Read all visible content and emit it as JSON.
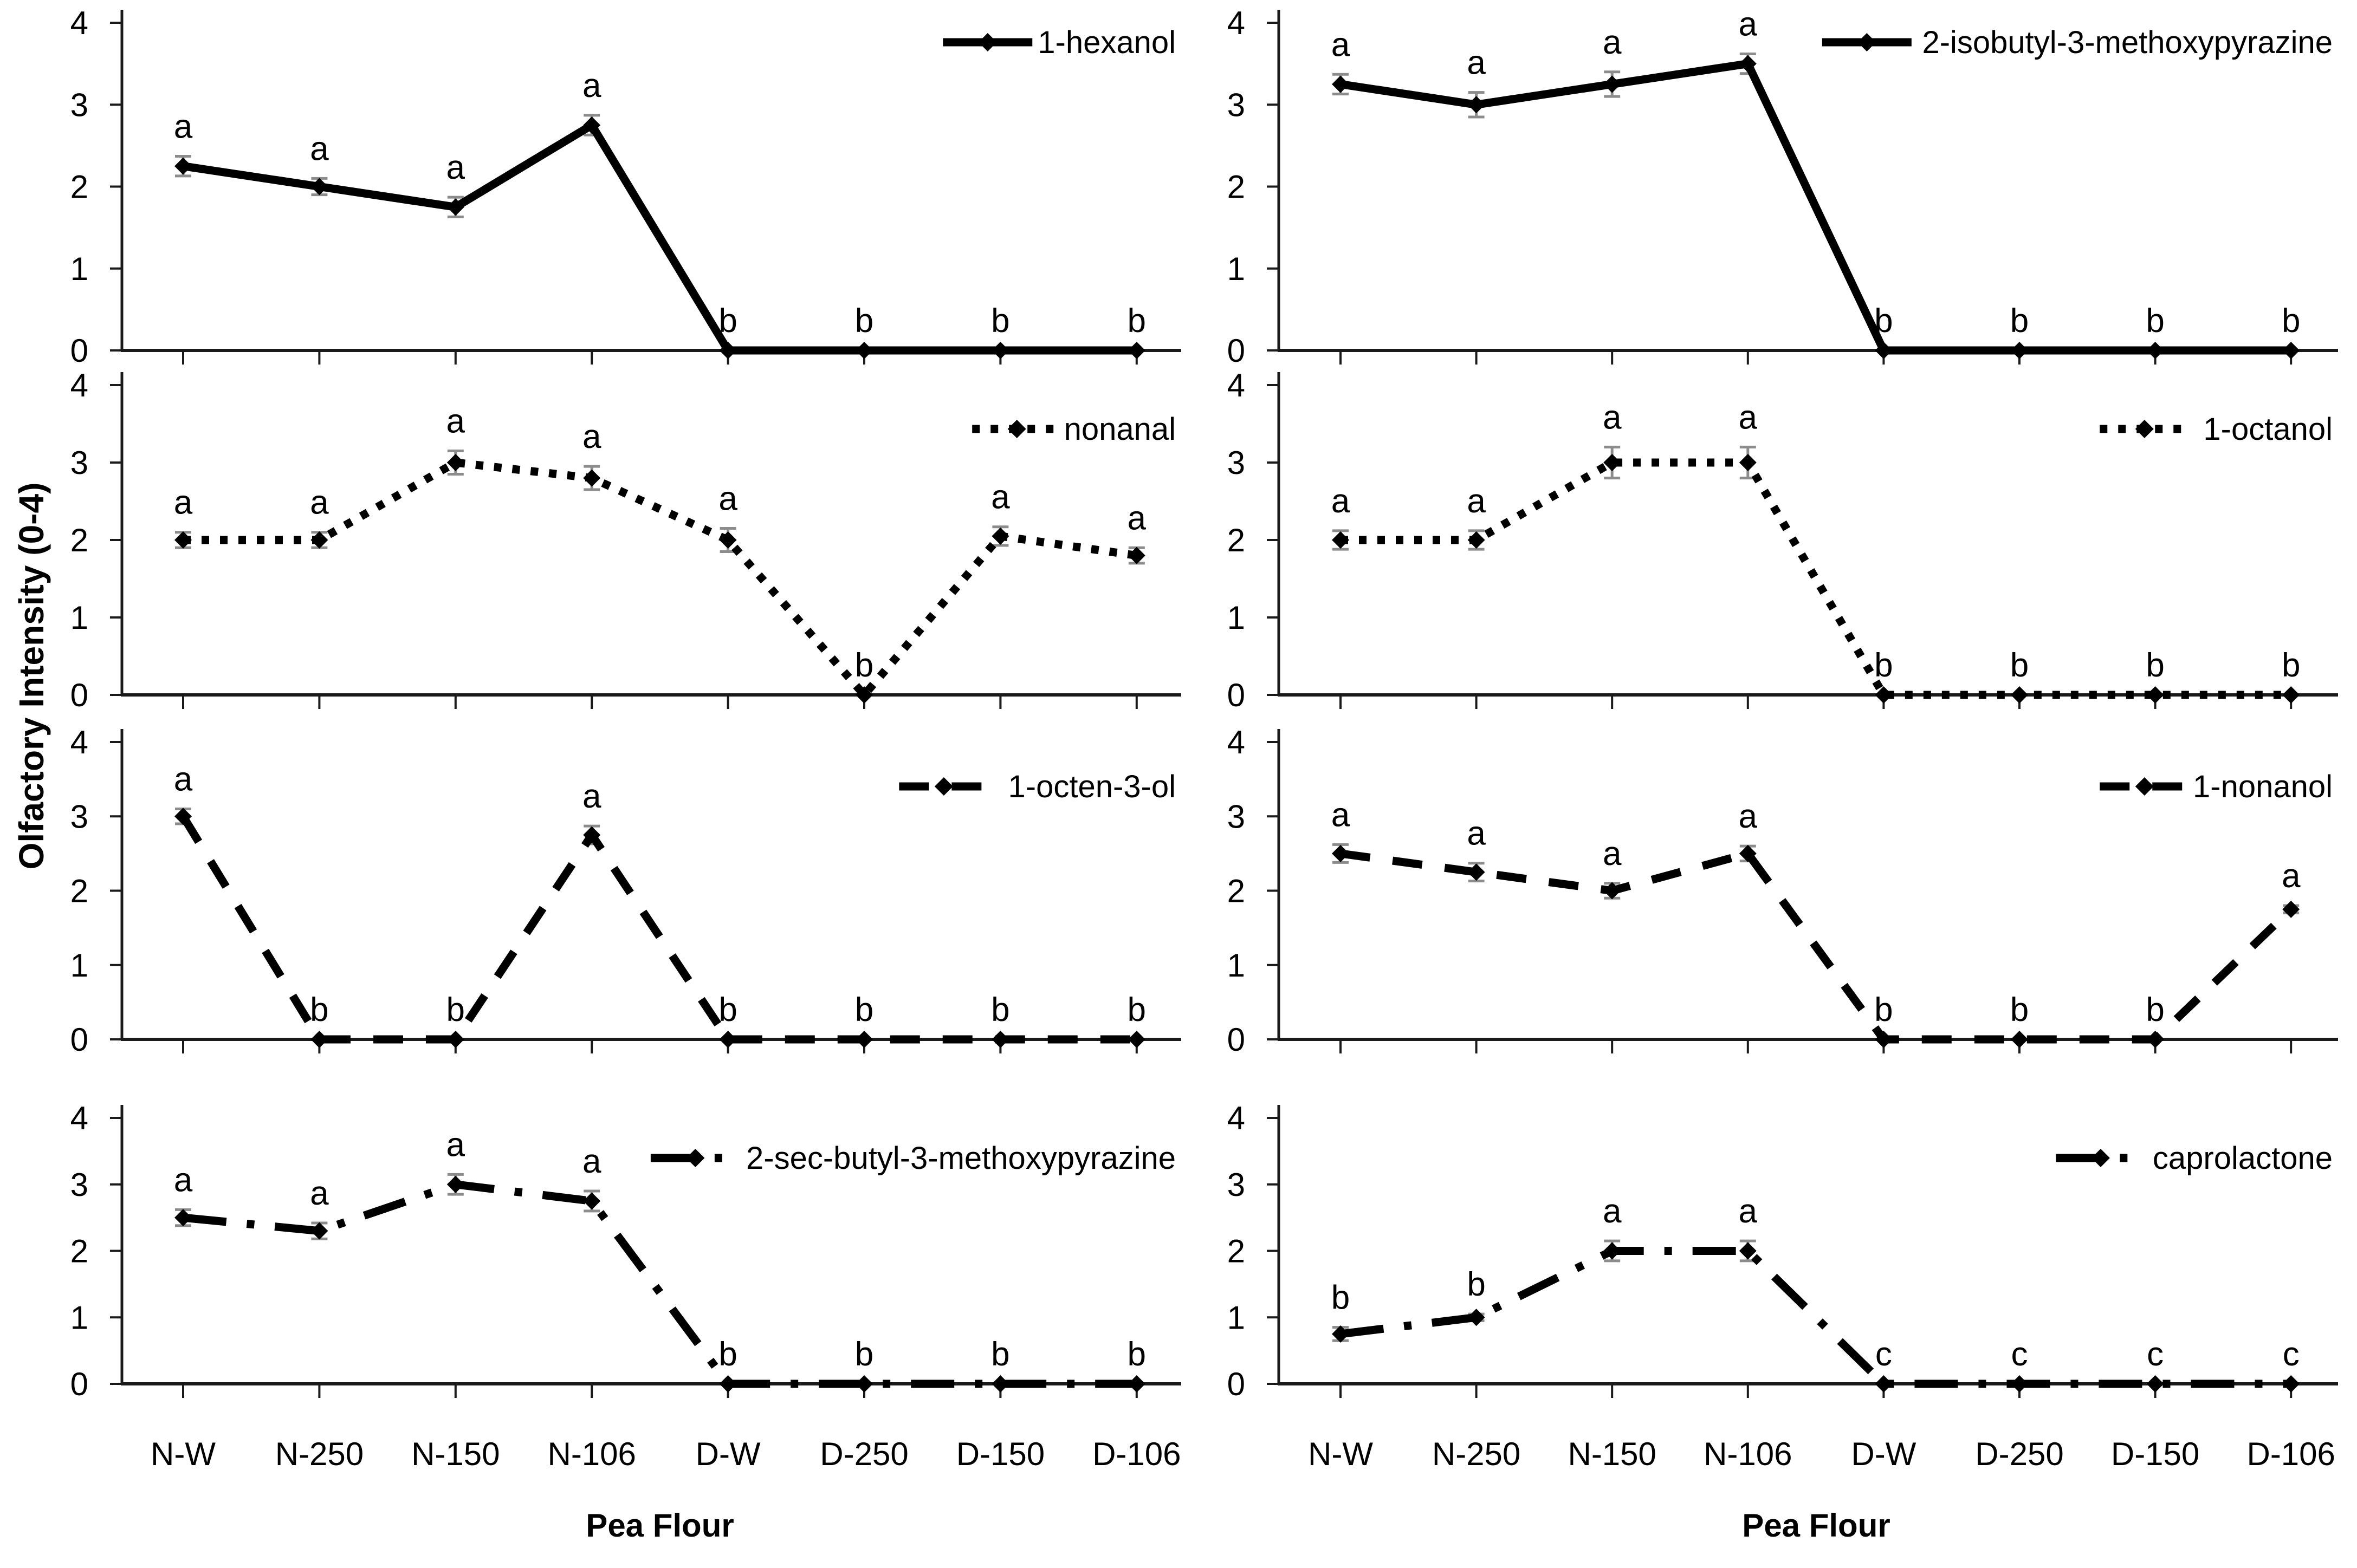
{
  "figure": {
    "ylabel": "Olfactory Intensity (0-4)",
    "xlabel_left": "Pea Flour",
    "xlabel_right": "Pea Flour",
    "colors": {
      "line": "#000000",
      "marker": "#000000",
      "error_bar": "#8c8c8c",
      "axis": "#1a1a1a",
      "text": "#000000",
      "background": "#ffffff"
    },
    "grid": false,
    "legend_position": "top-right"
  },
  "chart_data": [
    {
      "type": "line",
      "name": "1-hexanol",
      "legend_label": "1-hexanol",
      "line_style": "solid",
      "marker": "diamond",
      "categories": [
        "N-W",
        "N-250",
        "N-150",
        "N-106",
        "D-W",
        "D-250",
        "D-150",
        "D-106"
      ],
      "values": [
        2.25,
        2.0,
        1.75,
        2.75,
        0,
        0,
        0,
        0
      ],
      "errors": [
        0.12,
        0.1,
        0.12,
        0.12,
        0,
        0,
        0,
        0
      ],
      "sig_letters": [
        "a",
        "a",
        "a",
        "a",
        "b",
        "b",
        "b",
        "b"
      ],
      "ylim": [
        0,
        4
      ],
      "yticks": [
        0,
        1,
        2,
        3,
        4
      ]
    },
    {
      "type": "line",
      "name": "2-isobutyl-3-methoxypyrazine",
      "legend_label": "2-isobutyl-3-methoxypyrazine",
      "line_style": "solid",
      "marker": "diamond",
      "categories": [
        "N-W",
        "N-250",
        "N-150",
        "N-106",
        "D-W",
        "D-250",
        "D-150",
        "D-106"
      ],
      "values": [
        3.25,
        3.0,
        3.25,
        3.5,
        0,
        0,
        0,
        0
      ],
      "errors": [
        0.12,
        0.15,
        0.15,
        0.12,
        0,
        0,
        0,
        0
      ],
      "sig_letters": [
        "a",
        "a",
        "a",
        "a",
        "b",
        "b",
        "b",
        "b"
      ],
      "ylim": [
        0,
        4
      ],
      "yticks": [
        0,
        1,
        2,
        3,
        4
      ]
    },
    {
      "type": "line",
      "name": "nonanal",
      "legend_label": "nonanal",
      "line_style": "dotted",
      "marker": "circle",
      "categories": [
        "N-W",
        "N-250",
        "N-150",
        "N-106",
        "D-W",
        "D-250",
        "D-150",
        "D-106"
      ],
      "values": [
        2.0,
        2.0,
        3.0,
        2.8,
        2.0,
        0,
        2.05,
        1.8
      ],
      "errors": [
        0.1,
        0.1,
        0.15,
        0.15,
        0.15,
        0,
        0.12,
        0.1
      ],
      "sig_letters": [
        "a",
        "a",
        "a",
        "a",
        "a",
        "b",
        "a",
        "a"
      ],
      "ylim": [
        0,
        4
      ],
      "yticks": [
        0,
        1,
        2,
        3,
        4
      ]
    },
    {
      "type": "line",
      "name": "1-octanol",
      "legend_label": "1-octanol",
      "line_style": "dotted",
      "marker": "circle",
      "categories": [
        "N-W",
        "N-250",
        "N-150",
        "N-106",
        "D-W",
        "D-250",
        "D-150",
        "D-106"
      ],
      "values": [
        2.0,
        2.0,
        3.0,
        3.0,
        0,
        0,
        0,
        0
      ],
      "errors": [
        0.12,
        0.12,
        0.2,
        0.2,
        0,
        0,
        0,
        0
      ],
      "sig_letters": [
        "a",
        "a",
        "a",
        "a",
        "b",
        "b",
        "b",
        "b"
      ],
      "ylim": [
        0,
        4
      ],
      "yticks": [
        0,
        1,
        2,
        3,
        4
      ]
    },
    {
      "type": "line",
      "name": "1-octen-3-ol",
      "legend_label": "1-octen-3-ol",
      "line_style": "dashed",
      "marker": "circle",
      "categories": [
        "N-W",
        "N-250",
        "N-150",
        "N-106",
        "D-W",
        "D-250",
        "D-150",
        "D-106"
      ],
      "values": [
        3.0,
        0,
        0,
        2.75,
        0,
        0,
        0,
        0
      ],
      "errors": [
        0.1,
        0,
        0,
        0.12,
        0,
        0,
        0,
        0
      ],
      "sig_letters": [
        "a",
        "b",
        "b",
        "a",
        "b",
        "b",
        "b",
        "b"
      ],
      "ylim": [
        0,
        4
      ],
      "yticks": [
        0,
        1,
        2,
        3,
        4
      ]
    },
    {
      "type": "line",
      "name": "1-nonanol",
      "legend_label": "1-nonanol",
      "line_style": "dashed",
      "marker": "circle",
      "categories": [
        "N-W",
        "N-250",
        "N-150",
        "N-106",
        "D-W",
        "D-250",
        "D-150",
        "D-106"
      ],
      "values": [
        2.5,
        2.25,
        2.0,
        2.5,
        0,
        0,
        0,
        1.75
      ],
      "errors": [
        0.12,
        0.12,
        0.1,
        0.1,
        0,
        0,
        0,
        0.05
      ],
      "sig_letters": [
        "a",
        "a",
        "a",
        "a",
        "b",
        "b",
        "b",
        "a"
      ],
      "ylim": [
        0,
        4
      ],
      "yticks": [
        0,
        1,
        2,
        3,
        4
      ]
    },
    {
      "type": "line",
      "name": "2-sec-butyl-3-methoxypyrazine",
      "legend_label": "2-sec-butyl-3-methoxypyrazine",
      "line_style": "dashdot",
      "marker": "circle",
      "categories": [
        "N-W",
        "N-250",
        "N-150",
        "N-106",
        "D-W",
        "D-250",
        "D-150",
        "D-106"
      ],
      "values": [
        2.5,
        2.3,
        3.0,
        2.75,
        0,
        0,
        0,
        0
      ],
      "errors": [
        0.12,
        0.12,
        0.15,
        0.15,
        0,
        0,
        0,
        0
      ],
      "sig_letters": [
        "a",
        "a",
        "a",
        "a",
        "b",
        "b",
        "b",
        "b"
      ],
      "ylim": [
        0,
        4
      ],
      "yticks": [
        0,
        1,
        2,
        3,
        4
      ]
    },
    {
      "type": "line",
      "name": "caprolactone",
      "legend_label": "caprolactone",
      "line_style": "dashdot",
      "marker": "circle",
      "categories": [
        "N-W",
        "N-250",
        "N-150",
        "N-106",
        "D-W",
        "D-250",
        "D-150",
        "D-106"
      ],
      "values": [
        0.75,
        1.0,
        2.0,
        2.0,
        0,
        0,
        0,
        0
      ],
      "errors": [
        0.1,
        0.05,
        0.15,
        0.15,
        0,
        0,
        0,
        0
      ],
      "sig_letters": [
        "b",
        "b",
        "a",
        "a",
        "c",
        "c",
        "c",
        "c"
      ],
      "ylim": [
        0,
        4
      ],
      "yticks": [
        0,
        1,
        2,
        3,
        4
      ]
    }
  ]
}
